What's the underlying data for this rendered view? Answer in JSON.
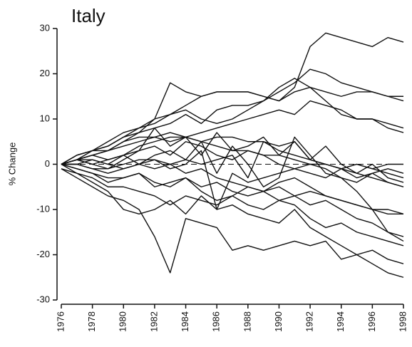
{
  "chart_data": {
    "type": "line",
    "title": "Italy",
    "y_label": "% Change",
    "color": "#111111",
    "x": [
      1976,
      1977,
      1978,
      1979,
      1980,
      1981,
      1982,
      1983,
      1984,
      1985,
      1986,
      1987,
      1988,
      1989,
      1990,
      1991,
      1992,
      1993,
      1994,
      1995,
      1996,
      1997,
      1998
    ],
    "xlim": [
      1976,
      1998
    ],
    "xticks": [
      1976,
      1978,
      1980,
      1982,
      1984,
      1986,
      1988,
      1990,
      1992,
      1994,
      1996,
      1998
    ],
    "ylim": [
      -30,
      30
    ],
    "yticks": [
      -30,
      -20,
      -10,
      0,
      10,
      20,
      30
    ],
    "reference_line": 0,
    "series": [
      {
        "values": [
          0,
          2,
          3,
          5,
          7,
          8,
          9,
          11,
          13,
          15,
          16,
          16,
          16,
          15,
          14,
          17,
          26,
          29,
          28,
          27,
          26,
          28,
          27
        ]
      },
      {
        "values": [
          0,
          2,
          3,
          4,
          6,
          7,
          10,
          18,
          16,
          15,
          16,
          16,
          16,
          15,
          14,
          16,
          17,
          16,
          15,
          16,
          16,
          15,
          15
        ]
      },
      {
        "values": [
          0,
          1,
          3,
          4,
          6,
          8,
          10,
          11,
          12,
          10,
          9,
          10,
          12,
          14,
          16,
          18,
          21,
          20,
          18,
          17,
          16,
          15,
          14
        ]
      },
      {
        "values": [
          0,
          1,
          2,
          3,
          5,
          7,
          8,
          9,
          11,
          9,
          12,
          13,
          13,
          14,
          17,
          19,
          17,
          14,
          11,
          10,
          10,
          8,
          7
        ]
      },
      {
        "values": [
          0,
          1,
          2,
          3,
          5,
          6,
          6,
          5,
          6,
          7,
          8,
          9,
          10,
          11,
          12,
          11,
          14,
          13,
          12,
          10,
          10,
          9,
          8
        ]
      },
      {
        "values": [
          0,
          2,
          3,
          3,
          4,
          5,
          6,
          7,
          6,
          5,
          6,
          6,
          5,
          5,
          4,
          5,
          1,
          0,
          -1,
          0,
          -1,
          -2,
          -3
        ]
      },
      {
        "values": [
          0,
          1,
          1,
          0,
          2,
          3,
          8,
          4,
          6,
          2,
          7,
          3,
          4,
          6,
          2,
          5,
          1,
          4,
          0,
          -2,
          0,
          -3,
          -4
        ]
      },
      {
        "values": [
          0,
          1,
          0,
          -1,
          1,
          3,
          4,
          2,
          5,
          4,
          2,
          1,
          3,
          2,
          0,
          -1,
          -2,
          -3,
          -1,
          -2,
          -3,
          -4,
          -5
        ]
      },
      {
        "values": [
          0,
          0,
          -1,
          -2,
          -1,
          0,
          2,
          3,
          1,
          5,
          -2,
          4,
          0,
          -5,
          -3,
          6,
          2,
          -2,
          -3,
          -6,
          -10,
          -15,
          -17
        ]
      },
      {
        "values": [
          0,
          -1,
          -2,
          -4,
          -3,
          -2,
          -5,
          -4,
          -3,
          -5,
          -4,
          -6,
          -7,
          -6,
          -8,
          -7,
          -9,
          -8,
          -10,
          -12,
          -13,
          -15,
          -16
        ]
      },
      {
        "values": [
          -1,
          -3,
          -5,
          -7,
          -8,
          -10,
          -16,
          -24,
          -12,
          -13,
          -14,
          -19,
          -18,
          -19,
          -18,
          -17,
          -18,
          -17,
          -21,
          -20,
          -19,
          -21,
          -22
        ]
      },
      {
        "values": [
          -1,
          -2,
          -4,
          -6,
          -10,
          -11,
          -10,
          -8,
          -11,
          -7,
          -10,
          -9,
          -11,
          -12,
          -13,
          -10,
          -14,
          -16,
          -18,
          -20,
          -22,
          -24,
          -25
        ]
      },
      {
        "values": [
          0,
          -2,
          -3,
          -5,
          -5,
          -6,
          -7,
          -9,
          -7,
          -8,
          -9,
          -7,
          -9,
          -10,
          -8,
          -9,
          -12,
          -14,
          -13,
          -15,
          -16,
          -17,
          -18
        ]
      },
      {
        "values": [
          0,
          -1,
          -2,
          -3,
          -3,
          -2,
          -4,
          -5,
          -3,
          -6,
          -8,
          -7,
          -5,
          -6,
          -4,
          -3,
          -5,
          -7,
          -8,
          -9,
          -10,
          -11,
          -11
        ]
      },
      {
        "values": [
          0,
          1,
          0,
          1,
          2,
          0,
          1,
          -1,
          0,
          3,
          -10,
          -2,
          -4,
          -3,
          -2,
          -1,
          0,
          -1,
          -3,
          -4,
          -2,
          -1,
          -2
        ]
      },
      {
        "values": [
          0,
          0,
          1,
          0,
          -1,
          0,
          -1,
          0,
          1,
          0,
          1,
          2,
          -3,
          5,
          3,
          2,
          1,
          0,
          -1,
          0,
          -1,
          0,
          0
        ]
      },
      {
        "values": [
          0,
          1,
          2,
          1,
          2,
          4,
          5,
          6,
          6,
          5,
          4,
          3,
          3,
          2,
          2,
          1,
          0,
          0,
          -1,
          -3,
          -2,
          -4,
          -5
        ]
      },
      {
        "values": [
          0,
          0,
          -1,
          -1,
          0,
          1,
          1,
          0,
          -2,
          -1,
          -3,
          -4,
          -5,
          -6,
          -5,
          -7,
          -6,
          -7,
          -8,
          -9,
          -10,
          -10,
          -11
        ]
      }
    ]
  }
}
